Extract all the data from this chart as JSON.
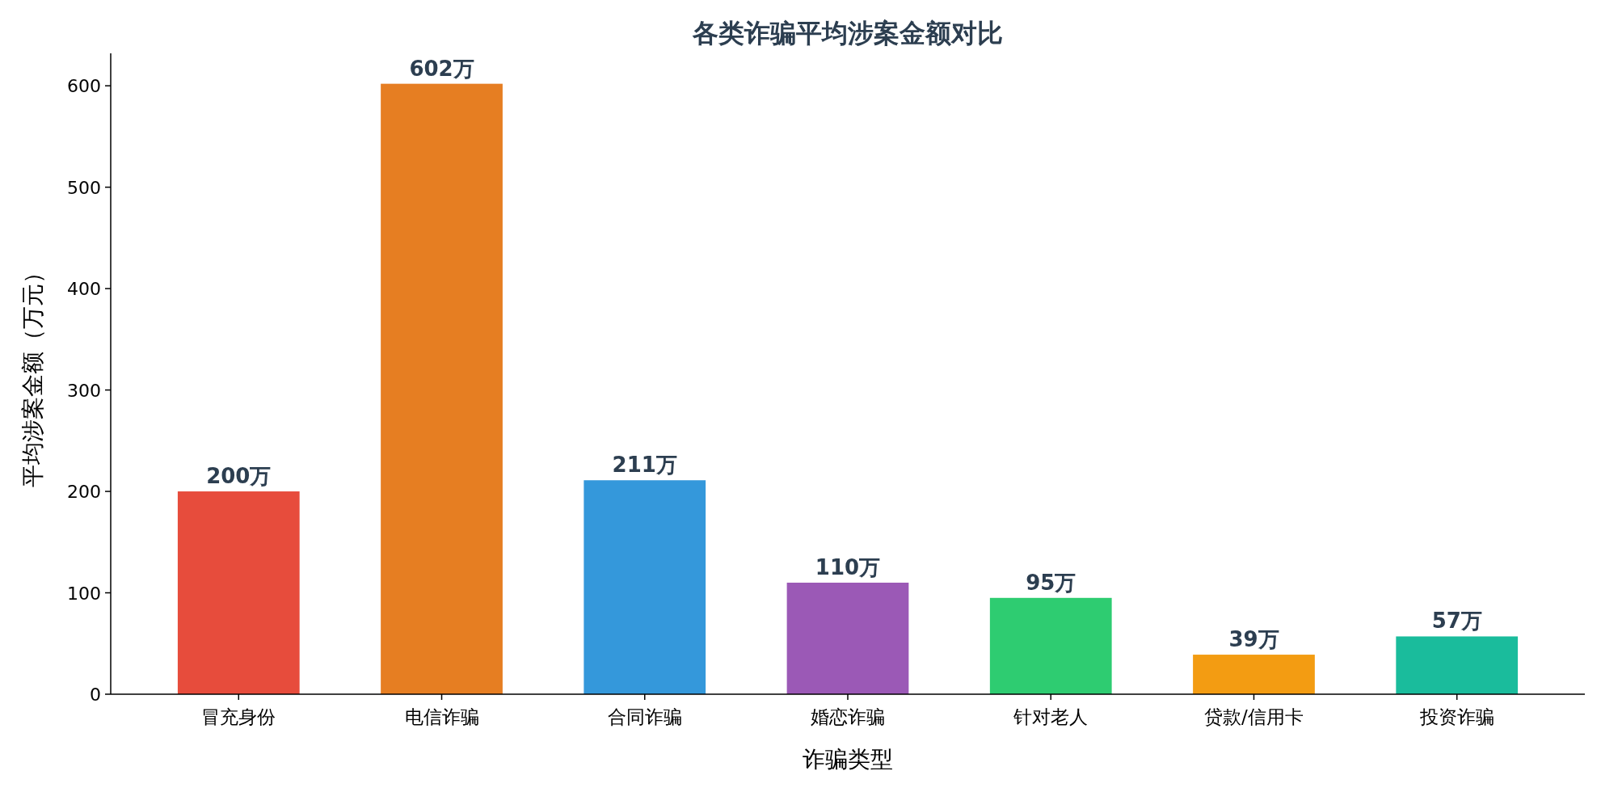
{
  "chart_data": {
    "type": "bar",
    "title": "各类诈骗平均涉案金额对比",
    "xlabel": "诈骗类型",
    "ylabel": "平均涉案金额（万元）",
    "categories": [
      "冒充身份",
      "电信诈骗",
      "合同诈骗",
      "婚恋诈骗",
      "针对老人",
      "贷款/信用卡",
      "投资诈骗"
    ],
    "values": [
      200,
      602,
      211,
      110,
      95,
      39,
      57
    ],
    "colors": [
      "#e74c3c",
      "#e67e22",
      "#3498db",
      "#9b59b6",
      "#2ecc71",
      "#f39c12",
      "#1abc9c"
    ],
    "value_labels": [
      "200万",
      "602万",
      "211万",
      "110万",
      "95万",
      "39万",
      "57万"
    ],
    "ylim": [
      0,
      632
    ],
    "yticks": [
      0,
      100,
      200,
      300,
      400,
      500,
      600
    ]
  }
}
